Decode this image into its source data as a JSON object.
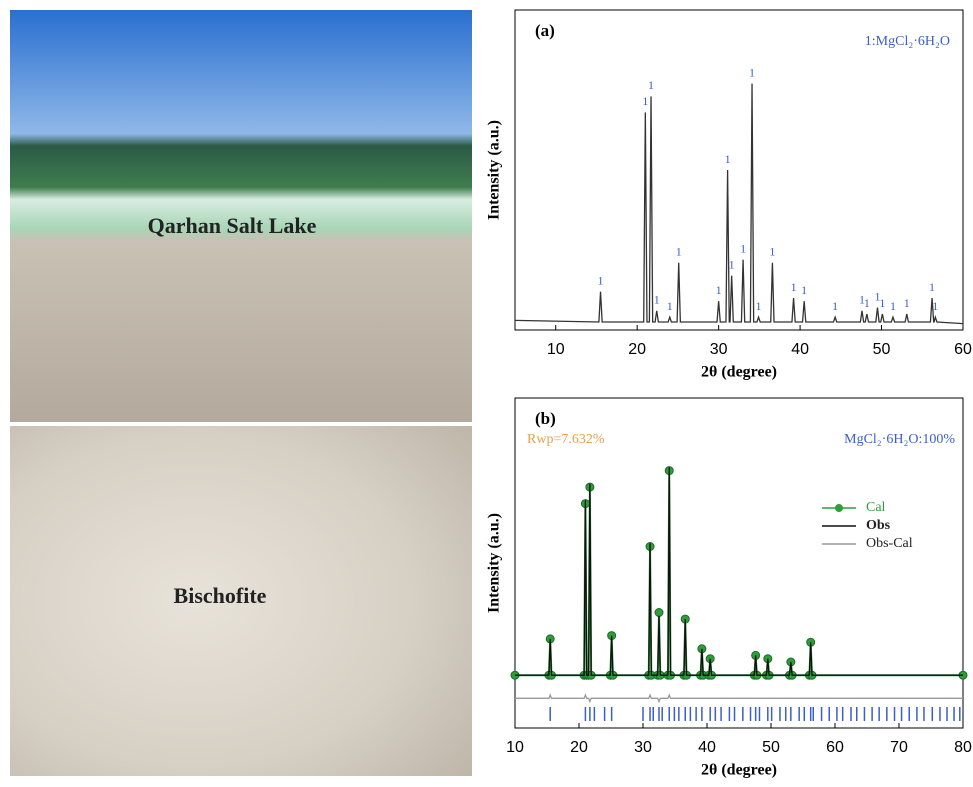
{
  "photos": [
    {
      "label": "Qarhan Salt Lake"
    },
    {
      "label": "Bischofite"
    }
  ],
  "chart_data": [
    {
      "type": "line",
      "panel_label": "(a)",
      "x_label": "2θ (degree)",
      "y_label": "Intensity (a.u.)",
      "annotations": [
        "1:MgCl₂·6H₂O"
      ],
      "peak_label": "1",
      "peak_label_color": "#3a5fc8",
      "xlim": [
        5,
        60
      ],
      "xticks": [
        10,
        20,
        30,
        40,
        50,
        60
      ],
      "ylim": [
        0,
        100
      ],
      "x": [
        5,
        15.3,
        15.5,
        15.7,
        20.8,
        21,
        21.2,
        21.5,
        21.7,
        21.9,
        22.2,
        22.4,
        22.6,
        23.8,
        24,
        24.2,
        24.9,
        25.1,
        25.3,
        29.8,
        30,
        30.2,
        30.9,
        31.1,
        31.3,
        31.4,
        31.6,
        31.8,
        32.8,
        33,
        33.2,
        33.9,
        34.1,
        34.3,
        34.7,
        34.9,
        35.1,
        36.4,
        36.6,
        36.8,
        39,
        39.2,
        39.4,
        40.3,
        40.5,
        40.7,
        44.1,
        44.3,
        44.5,
        47.4,
        47.6,
        47.8,
        48,
        48.2,
        48.4,
        49.3,
        49.5,
        49.7,
        49.9,
        50.1,
        50.3,
        51.2,
        51.4,
        51.6,
        52.9,
        53.1,
        53.3,
        56,
        56.2,
        56.4,
        56.45,
        56.6,
        56.8,
        60
      ],
      "series": [
        {
          "color": "#333333",
          "values": [
            3,
            2.5,
            12,
            2.5,
            2.5,
            68,
            2.5,
            2.5,
            73,
            2.5,
            2.5,
            6,
            2.5,
            2.5,
            4,
            2.5,
            2.5,
            21,
            2.5,
            2.5,
            9,
            2.5,
            2.5,
            50,
            2.5,
            2.5,
            17,
            2.5,
            2.5,
            22,
            2.5,
            2.5,
            77,
            2.5,
            2.5,
            4,
            2.5,
            2.5,
            21,
            2.5,
            2.5,
            10,
            2.5,
            2.5,
            9,
            2.5,
            2.5,
            4,
            2.5,
            2.5,
            6,
            2.5,
            2.5,
            5,
            2.5,
            2.5,
            7,
            2.5,
            2.5,
            5,
            2.5,
            2.5,
            4,
            2.5,
            2.5,
            5,
            2.5,
            2.5,
            10,
            2.5,
            2.5,
            4,
            2.5,
            2
          ]
        }
      ]
    },
    {
      "type": "line",
      "panel_label": "(b)",
      "x_label": "2θ (degree)",
      "y_label": "Intensity (a.u.)",
      "annotations": [
        "Rwp=7.632%",
        "MgCl₂·6H₂O:100%"
      ],
      "legend": true,
      "xlim": [
        10,
        80
      ],
      "xticks": [
        10,
        20,
        30,
        40,
        50,
        60,
        70,
        80
      ],
      "ylim": [
        0,
        100
      ],
      "x": [
        10,
        15.3,
        15.5,
        15.7,
        20.8,
        21,
        21.2,
        21.5,
        21.7,
        21.9,
        24.9,
        25.1,
        25.3,
        30.9,
        31.1,
        31.3,
        32.3,
        32.5,
        32.7,
        33.9,
        34.1,
        34.3,
        36.4,
        36.6,
        36.8,
        39,
        39.2,
        39.4,
        40.3,
        40.5,
        40.7,
        47.4,
        47.6,
        47.8,
        49.3,
        49.5,
        49.7,
        52.9,
        53.1,
        53.3,
        56,
        56.2,
        56.4,
        80
      ],
      "series": [
        {
          "name": "Cal",
          "color": "#2e9e3a",
          "marker": "circle",
          "values": [
            16,
            16,
            27,
            16,
            16,
            68,
            16,
            16,
            73,
            16,
            16,
            28,
            16,
            16,
            55,
            16,
            16,
            35,
            16,
            16,
            78,
            16,
            16,
            33,
            16,
            16,
            24,
            16,
            16,
            21,
            16,
            16,
            22,
            16,
            16,
            21,
            16,
            16,
            20,
            16,
            16,
            26,
            16,
            16
          ]
        },
        {
          "name": "Obs",
          "color": "#111111",
          "values": [
            16,
            16,
            27,
            16,
            16,
            69,
            16,
            16,
            74,
            16,
            16,
            28,
            16,
            16,
            56,
            16,
            16,
            34,
            16,
            16,
            79,
            16,
            16,
            33,
            16,
            16,
            24,
            16,
            16,
            21,
            16,
            16,
            22,
            16,
            16,
            21,
            16,
            16,
            20,
            16,
            16,
            26,
            16,
            16
          ]
        },
        {
          "name": "Obs-Cal",
          "color": "#999999",
          "values": [
            9,
            9,
            10,
            9,
            9,
            10,
            9,
            9,
            8,
            9,
            9,
            9,
            9,
            9,
            10,
            9,
            9,
            8,
            9,
            9,
            10,
            9,
            9,
            9,
            9,
            9,
            9,
            9,
            9,
            9,
            9,
            9,
            9,
            9,
            9,
            9,
            9,
            9,
            9,
            9,
            9,
            9,
            9,
            9
          ]
        }
      ],
      "bragg_color": "#3a5fc8",
      "bragg_positions": [
        15.5,
        21.0,
        21.7,
        22.4,
        24.0,
        25.1,
        30.0,
        31.1,
        31.6,
        32.5,
        33.0,
        34.1,
        34.9,
        35.6,
        36.6,
        37.4,
        38.3,
        39.2,
        40.5,
        41.3,
        42.2,
        43.5,
        44.3,
        45.6,
        46.8,
        47.6,
        48.2,
        49.5,
        50.1,
        51.4,
        52.3,
        53.1,
        54.4,
        55.2,
        56.2,
        56.6,
        57.9,
        59.1,
        60.3,
        61.2,
        62.5,
        63.4,
        64.6,
        65.8,
        66.9,
        68.1,
        69.3,
        70.4,
        71.6,
        72.8,
        73.9,
        75.2,
        76.4,
        77.5,
        78.6,
        79.5
      ]
    }
  ]
}
